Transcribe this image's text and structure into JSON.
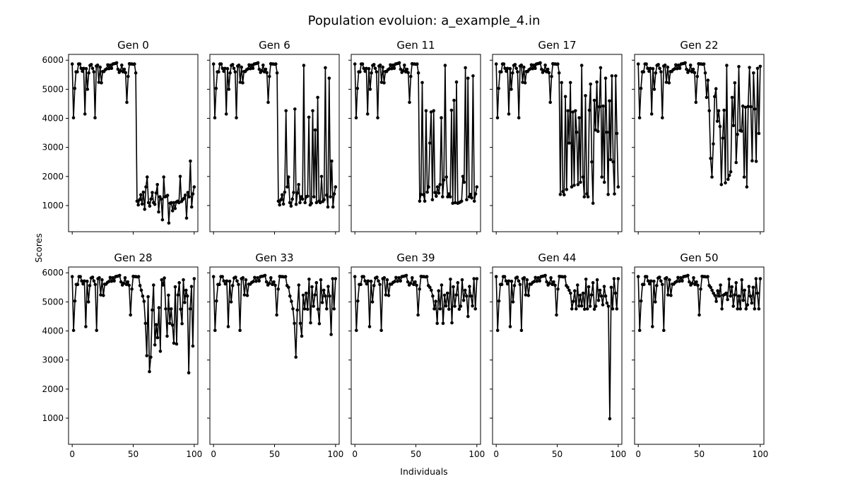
{
  "chart_data": {
    "type": "line",
    "title": "Population evoluion: a_example_4.in",
    "xlabel": "Individuals",
    "ylabel": "Scores",
    "xlim": [
      -3,
      103
    ],
    "ylim": [
      100,
      6200
    ],
    "x_ticks": [
      "0",
      "50",
      "100"
    ],
    "y_ticks": [
      "1000",
      "2000",
      "3000",
      "4000",
      "5000",
      "6000"
    ],
    "shared_axes": true,
    "grid": false,
    "color": "#000000",
    "base": [
      5870,
      4020,
      5030,
      5600,
      5600,
      5870,
      5870,
      5720,
      5620,
      5720,
      4150,
      5710,
      5000,
      5560,
      5820,
      5850,
      5720,
      5600,
      4020,
      5800,
      5830,
      5240,
      5760,
      5220,
      5610,
      5610,
      5670,
      5700,
      5840,
      5710,
      5830,
      5720,
      5870,
      5880,
      5890,
      5910,
      5690,
      5580,
      5640,
      5830,
      5600,
      5690,
      5570,
      4550,
      5440,
      5880,
      5870,
      5870,
      5860,
      5870,
      5560
    ],
    "panels": [
      {
        "title": "Gen 0",
        "tail": [
          1150,
          1020,
          1200,
          1370,
          1050,
          1460,
          870,
          1640,
          1980,
          1100,
          980,
          1220,
          1450,
          1100,
          1040,
          1430,
          1720,
          780,
          1300,
          1220,
          510,
          1980,
          1300,
          1320,
          1350,
          400,
          1080,
          1100,
          820,
          1100,
          900,
          1120,
          1150,
          1100,
          2000,
          1140,
          1200,
          1250,
          1360,
          570,
          1450,
          1300,
          2530,
          950,
          1400,
          1640
        ]
      },
      {
        "title": "Gen 6",
        "tail": [
          1150,
          1020,
          1200,
          1370,
          1050,
          1460,
          4260,
          1640,
          1980,
          1100,
          980,
          1220,
          1450,
          4320,
          1040,
          1430,
          1720,
          1100,
          1300,
          1220,
          5820,
          1100,
          1300,
          1320,
          4040,
          1020,
          1080,
          4260,
          1300,
          3600,
          1100,
          4720,
          1150,
          1100,
          2000,
          1140,
          1200,
          5740,
          1360,
          950,
          5380,
          1300,
          2530,
          950,
          1400,
          1640
        ]
      },
      {
        "title": "Gen 11",
        "tail": [
          1150,
          1380,
          5230,
          1370,
          1150,
          4260,
          1460,
          1640,
          3150,
          4220,
          1200,
          4260,
          1450,
          1320,
          1640,
          1430,
          1720,
          4020,
          1300,
          1880,
          5820,
          1980,
          1300,
          1400,
          1300,
          4280,
          1080,
          4620,
          1100,
          5250,
          1080,
          1100,
          1120,
          1150,
          2000,
          1800,
          5740,
          1200,
          5380,
          1300,
          1380,
          1260,
          5460,
          1150,
          1400,
          1640
        ]
      },
      {
        "title": "Gen 17",
        "tail": [
          1380,
          5230,
          1480,
          1370,
          4750,
          1550,
          4260,
          3150,
          5230,
          1640,
          4220,
          1700,
          4260,
          3520,
          1720,
          4020,
          1800,
          5820,
          1980,
          1300,
          4780,
          1400,
          1300,
          4280,
          5180,
          2500,
          1080,
          4620,
          3600,
          5250,
          3550,
          4400,
          5740,
          1980,
          4420,
          1800,
          5380,
          3520,
          1380,
          4600,
          2580,
          5460,
          2500,
          1400,
          5460,
          3480,
          1640
        ]
      },
      {
        "title": "Gen 22",
        "tail": [
          4720,
          5310,
          4260,
          2620,
          1980,
          3120,
          4750,
          5020,
          3900,
          4260,
          3720,
          1720,
          3320,
          4280,
          1780,
          5820,
          1900,
          2040,
          2160,
          4720,
          3750,
          5220,
          2480,
          3450,
          5780,
          3580,
          3560,
          4420,
          1980,
          4380,
          1640,
          4410,
          5750,
          4400,
          2540,
          5560,
          4320,
          2520,
          5720,
          3480,
          5790
        ]
      },
      {
        "title": "Gen 28",
        "tail": [
          5400,
          5200,
          5020,
          4260,
          3150,
          5180,
          2600,
          3100,
          4720,
          5580,
          3520,
          4220,
          3770,
          4800,
          3300,
          5760,
          5580,
          5820,
          4760,
          3820,
          5230,
          4260,
          4760,
          4200,
          3580,
          5520,
          3550,
          5240,
          5660,
          4750,
          4250,
          5760,
          4980,
          5400,
          5200,
          2560,
          4760,
          5530,
          3480,
          5800
        ]
      },
      {
        "title": "Gen 33",
        "tail": [
          5500,
          5200,
          5020,
          4760,
          4260,
          3100,
          4720,
          5580,
          4260,
          3820,
          5230,
          4760,
          5300,
          4750,
          5780,
          4280,
          5520,
          4850,
          5240,
          5660,
          4750,
          4250,
          5760,
          4980,
          5400,
          5200,
          4760,
          5530,
          5200,
          3880,
          5800,
          4760,
          5800
        ]
      },
      {
        "title": "Gen 39",
        "tail": [
          5500,
          5400,
          5200,
          4760,
          5020,
          4260,
          5380,
          4760,
          5580,
          4260,
          5230,
          4860,
          5300,
          4750,
          5780,
          4280,
          5520,
          4850,
          5240,
          5660,
          4750,
          4850,
          5760,
          5050,
          5400,
          5200,
          4500,
          5530,
          5200,
          4860,
          5800,
          4760,
          5800
        ]
      },
      {
        "title": "Gen 44",
        "tail": [
          5500,
          5400,
          5300,
          4760,
          5020,
          5380,
          4760,
          5580,
          4860,
          5230,
          4860,
          5300,
          4750,
          5780,
          4760,
          5520,
          4850,
          5240,
          5660,
          4750,
          4850,
          5760,
          5050,
          5400,
          5200,
          4900,
          5530,
          5200,
          4960,
          4850,
          980,
          5500,
          4760,
          5800,
          5300,
          4760,
          5800
        ]
      },
      {
        "title": "Gen 50",
        "tail": [
          5500,
          5400,
          5300,
          5220,
          5020,
          5380,
          5200,
          5580,
          4760,
          5230,
          5260,
          5300,
          5080,
          5780,
          5200,
          5520,
          4850,
          5240,
          5660,
          4760,
          5200,
          4760,
          5760,
          5050,
          5400,
          4760,
          4900,
          5530,
          5200,
          4960,
          5500,
          4760,
          5800,
          5300,
          4760,
          5800
        ]
      }
    ]
  }
}
